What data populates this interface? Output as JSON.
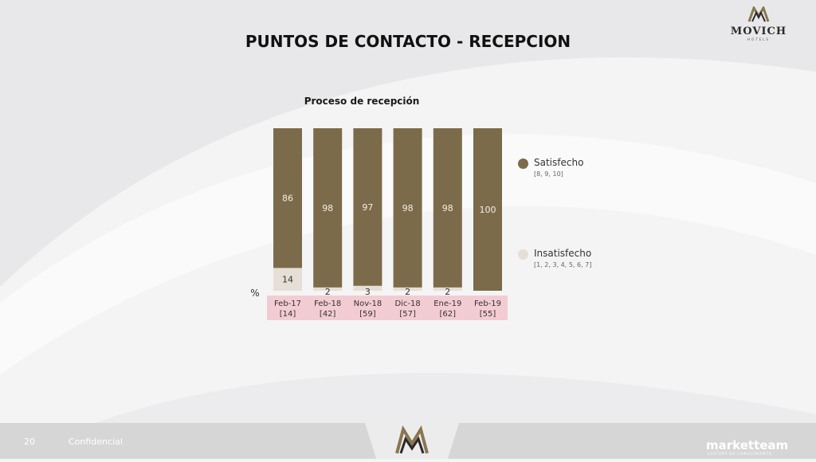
{
  "logo": {
    "wordmark": "MOVICH",
    "subtitle": "HOTELS"
  },
  "page_title": "PUNTOS DE CONTACTO - RECEPCION",
  "footer": {
    "page_number": "20",
    "text": "Confidencial",
    "brand": "marketteam",
    "brand_sub": "CULTURA DE CONOCIMIENTO"
  },
  "colors": {
    "satisfecho": "#7c6b4a",
    "insatisfecho": "#e5dfd7",
    "label_band": "#f3ccd3",
    "background": "#f4f4f5"
  },
  "chart_data": {
    "type": "bar",
    "stacked": true,
    "percent": true,
    "title": "Proceso de recepción",
    "ylabel": "%",
    "ylim": [
      0,
      100
    ],
    "grid": false,
    "legend_position": "right",
    "categories": [
      "Feb-17",
      "Feb-18",
      "Nov-18",
      "Dic-18",
      "Ene-19",
      "Feb-19"
    ],
    "bases": [
      "[14]",
      "[42]",
      "[59]",
      "[57]",
      "[62]",
      "[55]"
    ],
    "series": [
      {
        "name": "Satisfecho",
        "range": "[8, 9, 10]",
        "color": "#7c6b4a",
        "values": [
          86,
          98,
          97,
          98,
          98,
          100
        ]
      },
      {
        "name": "Insatisfecho",
        "range": "[1, 2, 3, 4, 5, 6, 7]",
        "color": "#e5dfd7",
        "values": [
          14,
          2,
          3,
          2,
          2,
          null
        ]
      }
    ]
  }
}
